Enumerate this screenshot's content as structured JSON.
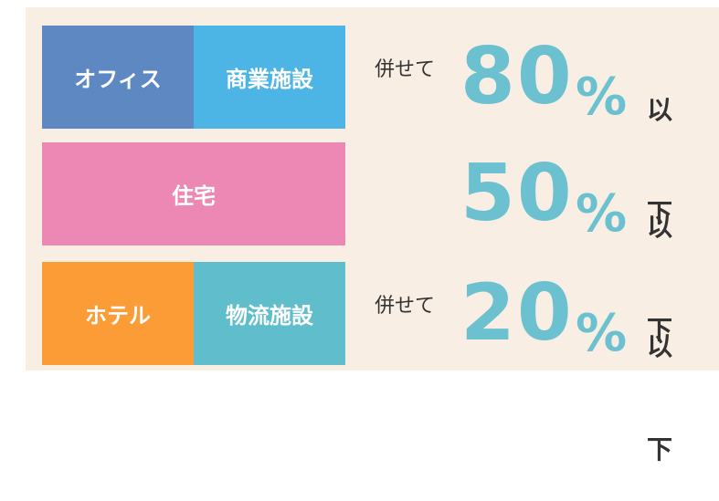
{
  "rows": [
    {
      "boxes": [
        {
          "label": "オフィス",
          "color": "#5d88c1"
        },
        {
          "label": "商業施設",
          "color": "#4db4e6"
        }
      ],
      "prefix": "併せて",
      "value": 80,
      "unit": "%",
      "suffix": "以下"
    },
    {
      "boxes": [
        {
          "label": "住宅",
          "color": "#ec88b3"
        }
      ],
      "value": 50,
      "unit": "%",
      "suffix": "以下"
    },
    {
      "boxes": [
        {
          "label": "ホテル",
          "color": "#fb9c37"
        },
        {
          "label": "物流施設",
          "color": "#60bdcc"
        }
      ],
      "prefix": "併せて",
      "value": 20,
      "unit": "%",
      "suffix": "以下"
    }
  ]
}
